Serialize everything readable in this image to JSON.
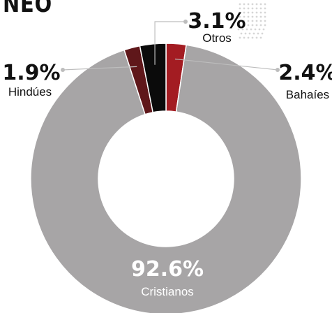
{
  "title": "NEO",
  "colors": {
    "cristianos": "#a7a5a6",
    "bahaies": "#a31c22",
    "otros": "#0b0b0b",
    "hindues": "#5f171a",
    "text": "#111111",
    "white": "#ffffff"
  },
  "chart_data": {
    "type": "pie",
    "donut": true,
    "start_angle_deg": 0,
    "direction": "clockwise",
    "slices": [
      {
        "label": "Bahaíes",
        "value": 2.4,
        "value_label": "2.4%",
        "color": "#a31c22"
      },
      {
        "label": "Cristianos",
        "value": 92.6,
        "value_label": "92.6%",
        "color": "#a7a5a6"
      },
      {
        "label": "Hindúes",
        "value": 1.9,
        "value_label": "1.9%",
        "color": "#5f171a"
      },
      {
        "label": "Otros",
        "value": 3.1,
        "value_label": "3.1%",
        "color": "#0b0b0b"
      }
    ]
  }
}
